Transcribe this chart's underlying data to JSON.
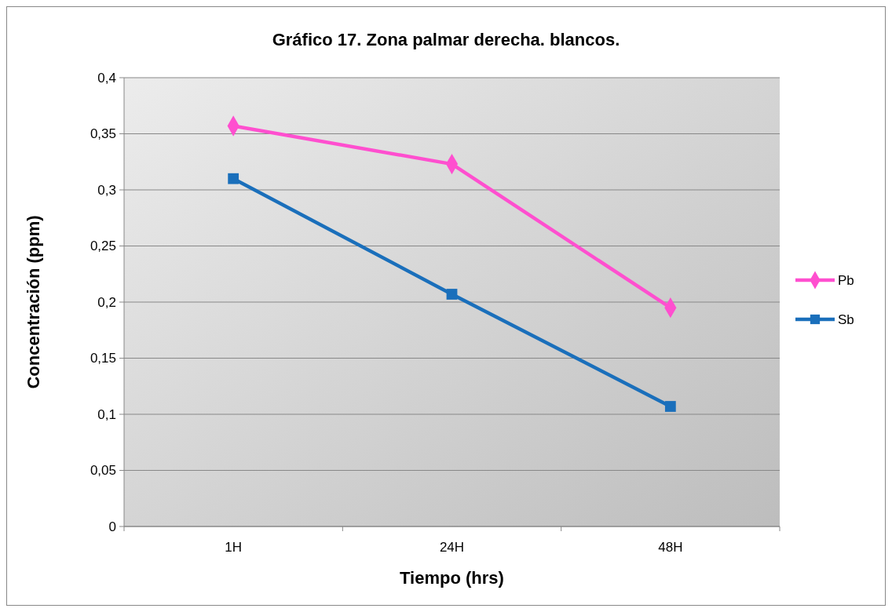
{
  "chart_data": {
    "type": "line",
    "title": "Gráfico 17. Zona palmar derecha. blancos.",
    "xlabel": "Tiempo (hrs)",
    "ylabel": "Concentración  (ppm)",
    "categories": [
      "1H",
      "24H",
      "48H"
    ],
    "series": [
      {
        "name": "Pb",
        "color": "#ff4fcf",
        "marker": "diamond",
        "values": [
          0.357,
          0.323,
          0.195
        ]
      },
      {
        "name": "Sb",
        "color": "#1a6fbb",
        "marker": "square",
        "values": [
          0.31,
          0.207,
          0.107
        ]
      }
    ],
    "ylim": [
      0,
      0.4
    ],
    "yticks": [
      {
        "value": 0,
        "label": "0"
      },
      {
        "value": 0.05,
        "label": "0,05"
      },
      {
        "value": 0.1,
        "label": "0,1"
      },
      {
        "value": 0.15,
        "label": "0,15"
      },
      {
        "value": 0.2,
        "label": "0,2"
      },
      {
        "value": 0.25,
        "label": "0,25"
      },
      {
        "value": 0.3,
        "label": "0,3"
      },
      {
        "value": 0.35,
        "label": "0,35"
      },
      {
        "value": 0.4,
        "label": "0,4"
      }
    ],
    "grid": "y",
    "legend": "right",
    "line_style": "solid"
  }
}
